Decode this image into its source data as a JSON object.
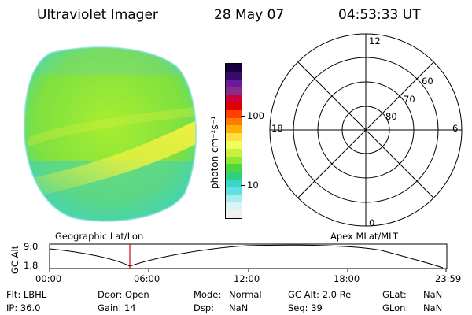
{
  "header": {
    "title": "Ultraviolet Imager",
    "date": "28 May 07",
    "time": "04:53:33 UT"
  },
  "colorbar": {
    "label": "photon cm⁻²s⁻¹",
    "ticks": [
      "100",
      "10"
    ],
    "colors": [
      "#14003c",
      "#3a0a6a",
      "#6c1a9a",
      "#8a2a8a",
      "#c8003c",
      "#e00000",
      "#ff4000",
      "#ff7a00",
      "#ffb000",
      "#ffe040",
      "#f0ff60",
      "#c8f040",
      "#8ee830",
      "#4ed840",
      "#30d080",
      "#38d8c8",
      "#60e0e0",
      "#a8ecec",
      "#d8f4f4",
      "#f0f0f0"
    ]
  },
  "polar": {
    "mlt_labels": {
      "top": "12",
      "right": "6",
      "left": "18",
      "bottom": "0"
    },
    "lat_labels": [
      "60",
      "70",
      "80"
    ]
  },
  "timeline": {
    "left_title": "Geographic Lat/Lon",
    "right_title": "Apex MLat/MLT",
    "y_label": "GC Alt",
    "y_max": "9.0",
    "y_min": "1.8",
    "ticks": [
      "00:00",
      "06:00",
      "12:00",
      "18:00",
      "23:59"
    ],
    "marker_time": "04:53:33"
  },
  "info": {
    "flt": "Flt: LBHL",
    "ip": "IP: 36.0",
    "door": "Door: Open",
    "gain": "Gain: 14",
    "mode_label": "Mode:",
    "mode_value": "Normal",
    "dsp_label": "Dsp:",
    "dsp_value": "NaN",
    "gcalt": "GC Alt: 2.0 Re",
    "seq": "Seq: 39",
    "glat_label": "GLat:",
    "glat_value": "NaN",
    "glon_label": "GLon:",
    "glon_value": "NaN"
  },
  "colors": {
    "accent_red": "#dd0000",
    "aurora_green": "#8ee830",
    "band_yellow": "#e8f040",
    "edge_cyan": "#40e0d0"
  }
}
